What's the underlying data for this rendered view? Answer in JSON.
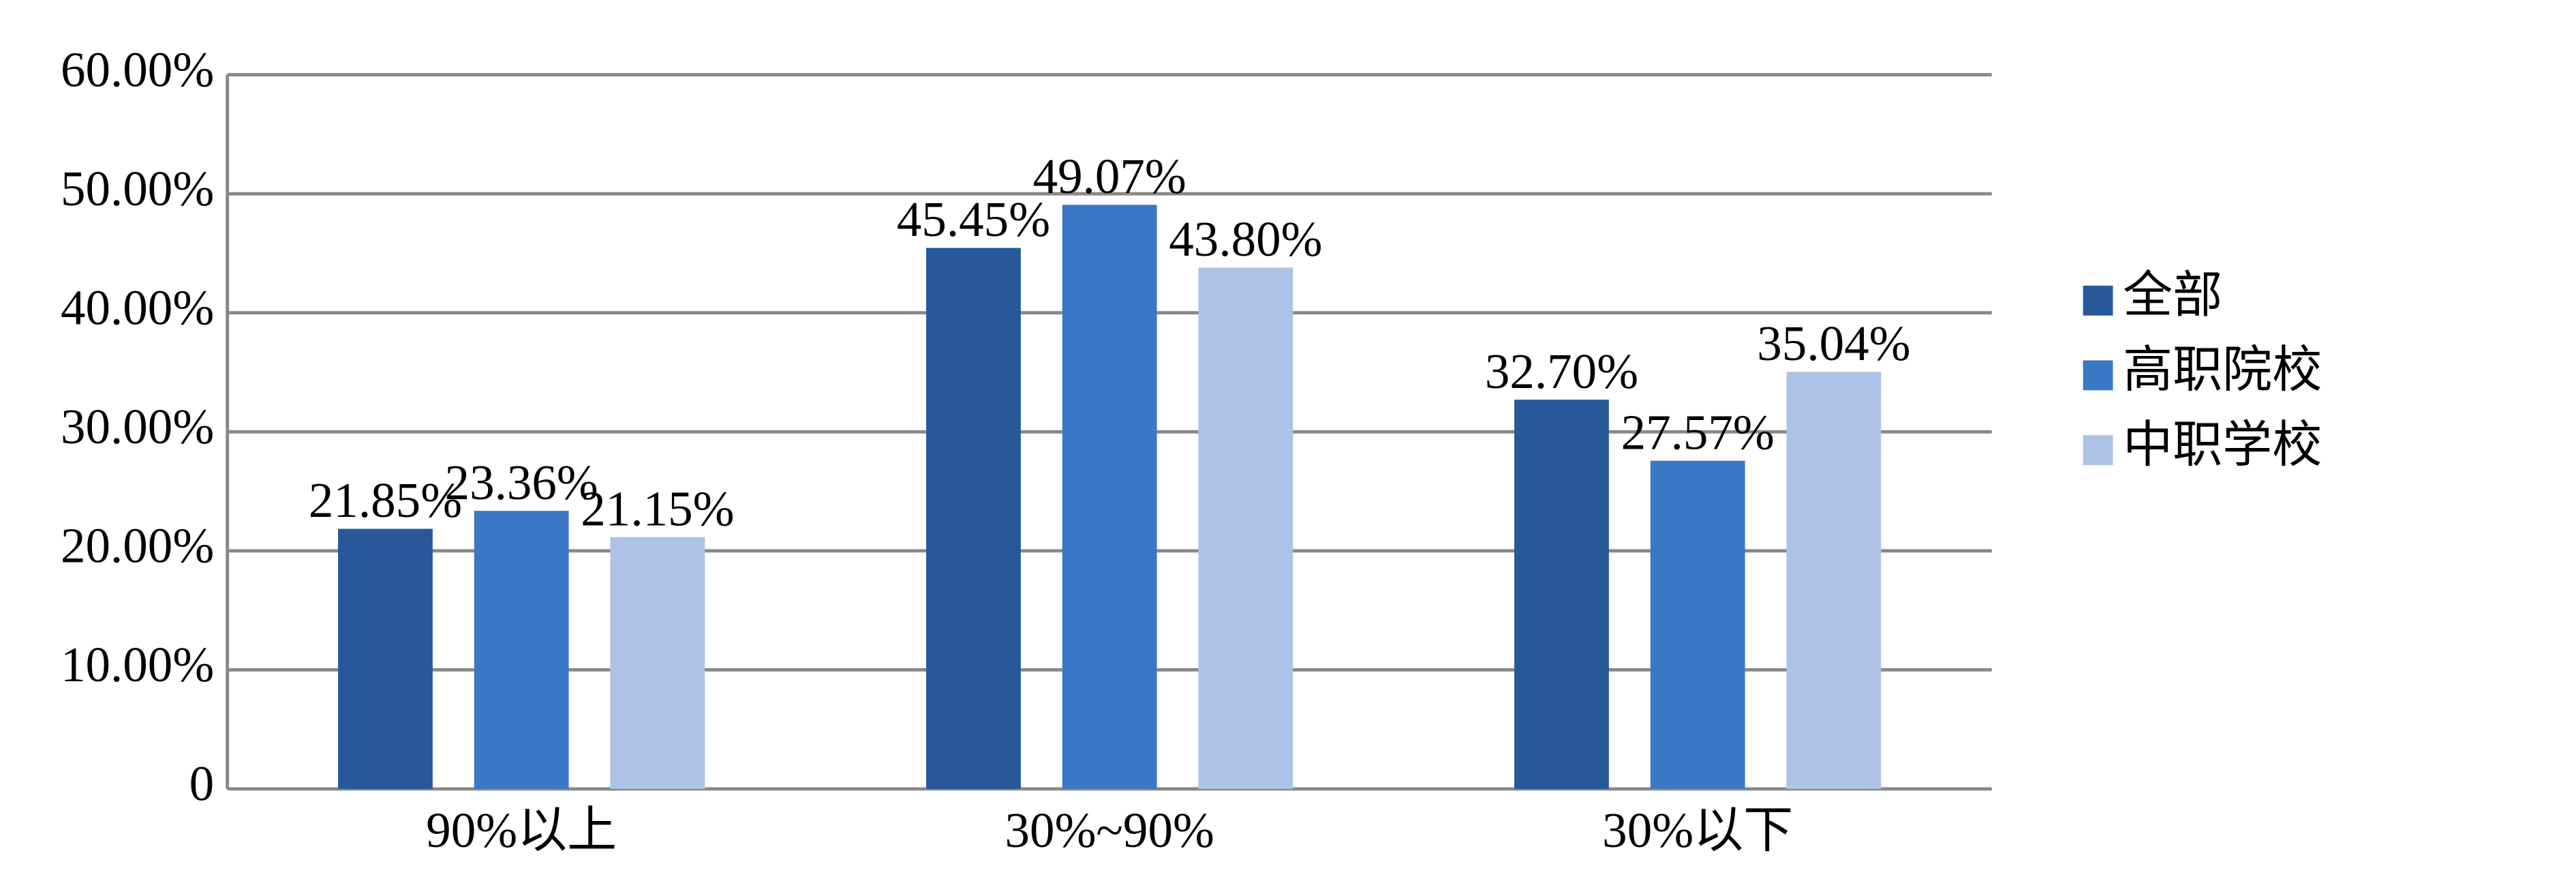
{
  "chart_data": {
    "type": "bar",
    "categories": [
      "90%以上",
      "30%~90%",
      "30%以下"
    ],
    "series": [
      {
        "name": "全部",
        "color": "#27599a",
        "values": [
          21.85,
          45.45,
          32.7
        ],
        "value_labels": [
          "21.85%",
          "45.45%",
          "32.70%"
        ]
      },
      {
        "name": "高职院校",
        "color": "#3a78c5",
        "values": [
          23.36,
          49.07,
          27.57
        ],
        "value_labels": [
          "23.36%",
          "49.07%",
          "27.57%"
        ]
      },
      {
        "name": "中职学校",
        "color": "#adc2e7",
        "values": [
          21.15,
          43.8,
          35.04
        ],
        "value_labels": [
          "21.15%",
          "43.80%",
          "35.04%"
        ]
      }
    ],
    "ylim": [
      0,
      60
    ],
    "yticks": [
      0,
      {
        "value": 10,
        "label": "10.00%"
      },
      {
        "value": 20,
        "label": "20.00%"
      },
      {
        "value": 30,
        "label": "30.00%"
      },
      {
        "value": 40,
        "label": "40.00%"
      },
      {
        "value": 50,
        "label": "50.00%"
      },
      {
        "value": 60,
        "label": "60.00%"
      }
    ],
    "grid": true,
    "legend": "right"
  }
}
